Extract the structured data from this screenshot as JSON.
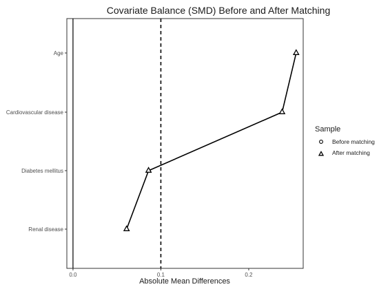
{
  "chart_data": {
    "type": "scatter",
    "title": "Covariate Balance (SMD) Before and After Matching",
    "xlabel": "Absolute Mean Differences",
    "ylabel": "",
    "xlim": [
      -0.007,
      0.262
    ],
    "x_ticks": [
      0.0,
      0.1,
      0.2
    ],
    "x_tick_labels": [
      "0.0",
      "0.1",
      "0.2"
    ],
    "categories": [
      "Age",
      "Cardiovascular disease",
      "Diabetes mellitus",
      "Renal disease"
    ],
    "reference_lines": [
      {
        "x": 0,
        "style": "solid"
      },
      {
        "x": 0.1,
        "style": "dashed"
      }
    ],
    "grid": false,
    "legend": {
      "title": "Sample",
      "placement": "right",
      "entries": [
        {
          "label": "Before matching",
          "marker": "circle"
        },
        {
          "label": "After matching",
          "marker": "triangle"
        }
      ]
    },
    "series": [
      {
        "name": "Before matching",
        "marker": "circle",
        "values": [
          null,
          null,
          null,
          null
        ]
      },
      {
        "name": "After matching",
        "marker": "triangle",
        "connected": true,
        "values": [
          0.254,
          0.238,
          0.086,
          0.061
        ]
      }
    ]
  }
}
